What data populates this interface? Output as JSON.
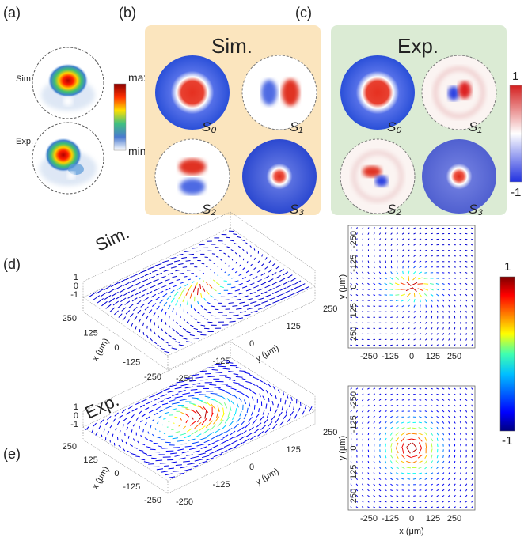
{
  "panel_a": {
    "label": "(a)",
    "rows": [
      "Sim.",
      "Exp."
    ],
    "colorbar": {
      "max": "max",
      "min": "min"
    }
  },
  "panel_b": {
    "label": "(b)",
    "title": "Sim.",
    "stokes": [
      "S₀",
      "S₁",
      "S₂",
      "S₃"
    ]
  },
  "panel_c": {
    "label": "(c)",
    "title": "Exp.",
    "stokes": [
      "S₀",
      "S₁",
      "S₂",
      "S₃"
    ],
    "colorbar_ticks": [
      "1",
      "-1"
    ]
  },
  "panel_d": {
    "label": "(d)",
    "title": "Sim.",
    "z_ticks": [
      "1",
      "0",
      "-1"
    ],
    "x_ticks": [
      "250",
      "125",
      "0",
      "-125",
      "-250"
    ],
    "x_label": "x (μm)",
    "y_ticks": [
      "-250",
      "-125",
      "0",
      "125",
      "250"
    ],
    "y_label": "y (μm)",
    "map_y_ticks": [
      "-250",
      "-125",
      "0",
      "125",
      "250"
    ],
    "map_y_label": "y (μm)",
    "map_x_ticks": [
      "-250",
      "-125",
      "0",
      "125",
      "250"
    ]
  },
  "panel_e": {
    "label": "(e)",
    "title": "Exp.",
    "z_ticks": [
      "1",
      "0",
      "-1"
    ],
    "x_ticks": [
      "250",
      "125",
      "0",
      "-125",
      "-250"
    ],
    "x_label": "x (μm)",
    "y_ticks": [
      "-250",
      "-125",
      "0",
      "125",
      "250"
    ],
    "y_label": "y (μm)",
    "map_y_ticks": [
      "-250",
      "-125",
      "0",
      "125",
      "250"
    ],
    "map_y_label": "y (μm)",
    "map_x_ticks": [
      "-250",
      "-125",
      "0",
      "125",
      "250"
    ],
    "map_x_label": "x (μm)"
  },
  "colorbar": {
    "ticks": [
      "1",
      "-1"
    ]
  }
}
